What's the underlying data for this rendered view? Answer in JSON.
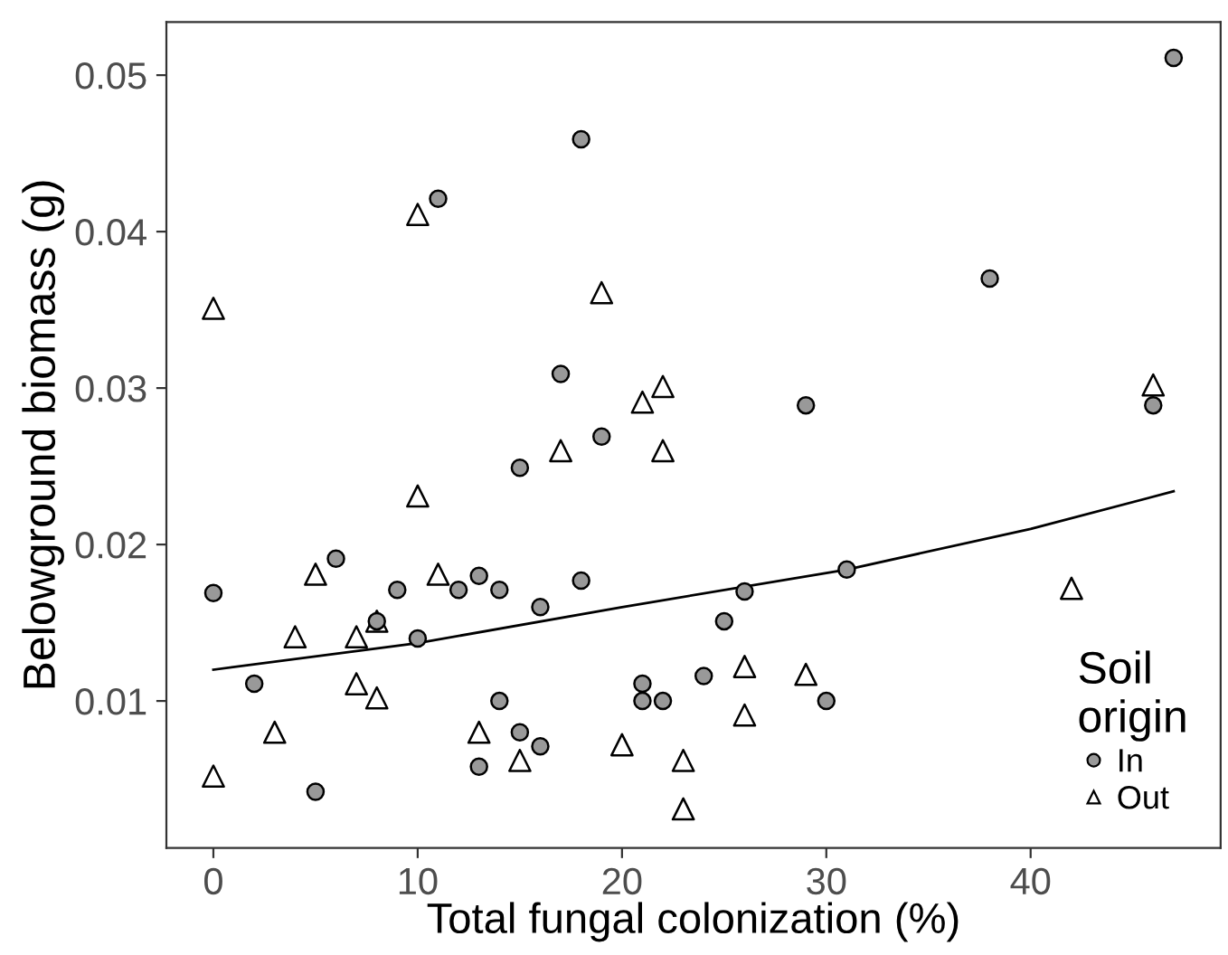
{
  "chart_data": {
    "type": "scatter",
    "xlabel": "Total fungal colonization (%)",
    "ylabel": "Belowground biomass (g)",
    "legend_title": "Soil\norigin",
    "legend": "bottom right",
    "grid": false,
    "xlim": [
      -2.3,
      49.3
    ],
    "ylim": [
      0.0006,
      0.0534
    ],
    "xticks": [
      0,
      10,
      20,
      30,
      40
    ],
    "yticks": [
      0.01,
      0.02,
      0.03,
      0.04,
      0.05
    ],
    "series": [
      {
        "name": "In",
        "marker": "circle",
        "color": "#999999",
        "x": [
          0,
          2,
          5,
          6,
          8,
          9,
          10,
          11,
          12,
          13,
          13,
          14,
          14,
          15,
          15,
          16,
          16,
          17,
          18,
          18,
          19,
          21,
          21,
          22,
          24,
          25,
          26,
          29,
          30,
          31,
          38,
          46,
          47
        ],
        "values": [
          0.0169,
          0.0111,
          0.0042,
          0.0191,
          0.0151,
          0.0171,
          0.014,
          0.0421,
          0.0171,
          0.018,
          0.0058,
          0.0171,
          0.01,
          0.0249,
          0.008,
          0.016,
          0.0071,
          0.0309,
          0.0177,
          0.0459,
          0.0269,
          0.0111,
          0.01,
          0.01,
          0.0116,
          0.0151,
          0.017,
          0.0289,
          0.01,
          0.0184,
          0.037,
          0.0289,
          0.0511
        ]
      },
      {
        "name": "Out",
        "marker": "triangle",
        "color": "#ffffff",
        "x": [
          0,
          0,
          3,
          4,
          5,
          7,
          7,
          8,
          8,
          10,
          10,
          11,
          13,
          15,
          17,
          19,
          20,
          21,
          22,
          22,
          23,
          23,
          26,
          26,
          29,
          42,
          46
        ],
        "values": [
          0.0351,
          0.0052,
          0.008,
          0.0141,
          0.0181,
          0.0141,
          0.0111,
          0.0151,
          0.0102,
          0.0231,
          0.0411,
          0.0181,
          0.008,
          0.0062,
          0.026,
          0.0361,
          0.0072,
          0.0291,
          0.0301,
          0.026,
          0.0062,
          0.0031,
          0.0122,
          0.0091,
          0.0117,
          0.0172,
          0.0302
        ]
      },
      {
        "type": "line",
        "color": "#000000",
        "x": [
          0,
          10,
          20,
          31,
          40,
          47
        ],
        "values": [
          0.012,
          0.0137,
          0.016,
          0.0184,
          0.021,
          0.0234
        ]
      }
    ]
  }
}
